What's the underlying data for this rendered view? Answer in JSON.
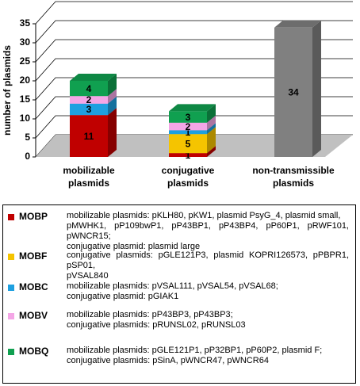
{
  "chart_data": {
    "type": "bar3d_stacked",
    "ylabel": "number of plasmids",
    "categories": [
      "mobilizable plasmids",
      "conjugative plasmids",
      "non-transmissible plasmids"
    ],
    "ylim": [
      0,
      35
    ],
    "yticks": [
      0,
      5,
      10,
      15,
      20,
      25,
      30,
      35
    ],
    "grid": true,
    "series": [
      {
        "name": "MOBP",
        "color": "#c00000",
        "values": [
          11,
          1,
          null
        ],
        "description": [
          "mobilizable plasmids: pKLH80, pKW1, plasmid PsyG_4, plasmid small,",
          "pMWHK1, pP109bwP1, pP43BP1, pP43BP4, pP60P1, pRWF101, pWNCR15;",
          "conjugative plasmid: plasmid large"
        ]
      },
      {
        "name": "MOBF",
        "color": "#f5c400",
        "values": [
          null,
          5,
          null
        ],
        "description": [
          "conjugative plasmids: pGLE121P3, plasmid KOPRI126573, pPBPR1, pSP01,",
          "pVSAL840"
        ]
      },
      {
        "name": "MOBC",
        "color": "#1ea0e0",
        "values": [
          3,
          1,
          null
        ],
        "description": [
          "mobilizable plasmids: pVSAL111, pVSAL54, pVSAL68;",
          "conjugative plasmid: pGIAK1"
        ]
      },
      {
        "name": "MOBV",
        "color": "#f4a6e6",
        "values": [
          2,
          2,
          null
        ],
        "description": [
          "mobilizable plasmids: pP43BP3, pP43BP3;",
          "conjugative plasmids: pRUNSL02, pRUNSL03"
        ]
      },
      {
        "name": "MOBQ",
        "color": "#10a050",
        "values": [
          4,
          3,
          null
        ],
        "description": [
          "mobilizable plasmids: pGLE121P1, pP32BP1, pP60P2, plasmid F;",
          "conjugative plasmids: pSinA, pWNCR47, pWNCR64"
        ]
      },
      {
        "color": "#808080",
        "values": [
          null,
          null,
          34
        ]
      }
    ]
  }
}
